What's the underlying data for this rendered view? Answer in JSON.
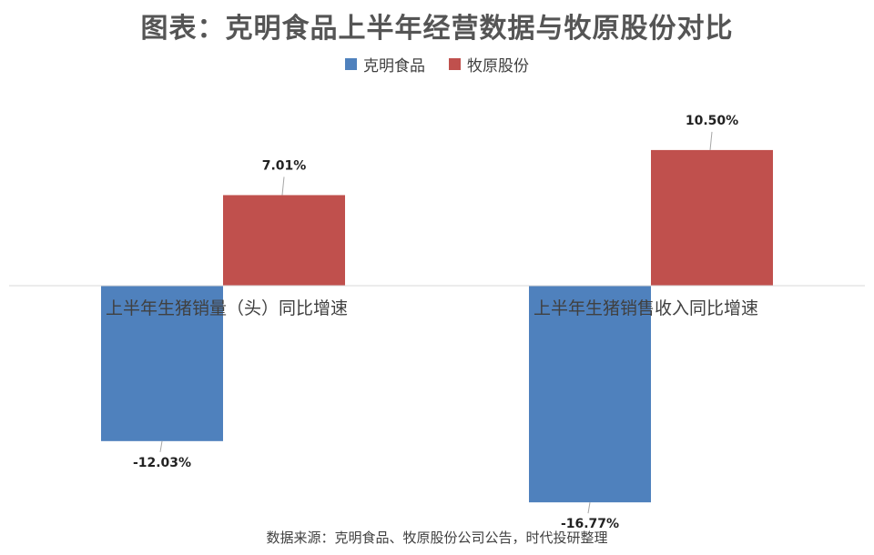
{
  "chart_data": {
    "type": "bar",
    "title": "图表：克明食品上半年经营数据与牧原股份对比",
    "categories": [
      "上半年生猪销量（头）同比增速",
      "上半年生猪销售收入同比增速"
    ],
    "series": [
      {
        "name": "克明食品",
        "color": "#4f81bd",
        "values": [
          -12.03,
          -16.77
        ],
        "labels": [
          "-12.03%",
          "-16.77%"
        ]
      },
      {
        "name": "牧原股份",
        "color": "#c0504d",
        "values": [
          7.01,
          10.5
        ],
        "labels": [
          "7.01%",
          "10.50%"
        ]
      }
    ],
    "ylim": [
      -18,
      13
    ],
    "grid": false,
    "legend_position": "top"
  },
  "source_note": "数据来源：克明食品、牧原股份公司公告，时代投研整理"
}
